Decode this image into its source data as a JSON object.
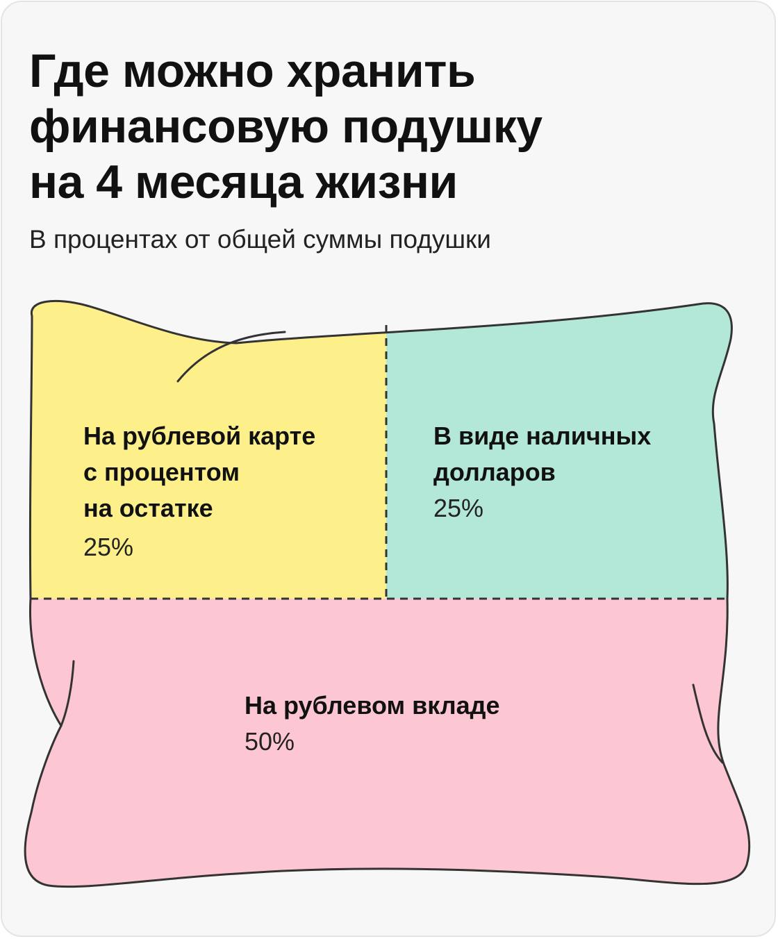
{
  "title_lines": [
    "Где можно хранить",
    "финансовую подушку",
    "на 4 месяца жизни"
  ],
  "subtitle": "В процентах от общей суммы подушки",
  "colors": {
    "card_background": "#f7f7f7",
    "outline": "#333333",
    "rub_card": "#fdf08a",
    "cash_usd": "#b3e8d9",
    "rub_deposit": "#fcc7d2"
  },
  "chart_data": {
    "type": "treemap",
    "title": "Где можно хранить финансовую подушку на 4 месяца жизни",
    "subtitle": "В процентах от общей суммы подушки",
    "unit": "%",
    "segments": [
      {
        "name_lines": [
          "На рублевой карте",
          "с процентом",
          "на остатке"
        ],
        "value": 25,
        "value_label": "25%",
        "color": "#fdf08a"
      },
      {
        "name_lines": [
          "В виде наличных",
          "долларов"
        ],
        "value": 25,
        "value_label": "25%",
        "color": "#b3e8d9"
      },
      {
        "name_lines": [
          "На рублевом вкладе"
        ],
        "value": 50,
        "value_label": "50%",
        "color": "#fcc7d2"
      }
    ]
  }
}
